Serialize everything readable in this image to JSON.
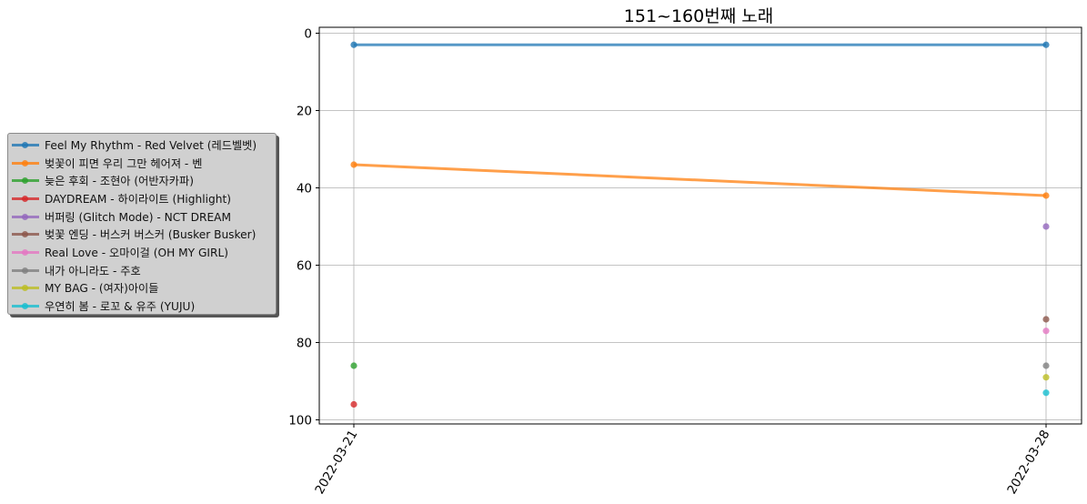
{
  "chart_data": {
    "type": "line",
    "title": "151~160번째 노래",
    "xlabel": "",
    "ylabel": "",
    "x": [
      "2022-03-21",
      "2022-03-28"
    ],
    "y_inverted": true,
    "ylim": [
      100,
      0
    ],
    "yticks": [
      "0",
      "20",
      "40",
      "60",
      "80",
      "100"
    ],
    "grid": true,
    "legend_position": "left outside",
    "series": [
      {
        "name": "Feel My Rhythm - Red Velvet (레드벨벳)",
        "color": "#1f77b4",
        "values": [
          3,
          3
        ]
      },
      {
        "name": "벚꽃이 피면 우리 그만 헤어져 - 벤",
        "color": "#ff7f0e",
        "values": [
          34,
          42
        ]
      },
      {
        "name": "늦은 후회 - 조현아 (어반자카파)",
        "color": "#2ca02c",
        "values": [
          86,
          null
        ]
      },
      {
        "name": "DAYDREAM - 하이라이트 (Highlight)",
        "color": "#d62728",
        "values": [
          96,
          null
        ]
      },
      {
        "name": "버퍼링 (Glitch Mode) - NCT DREAM",
        "color": "#9467bd",
        "values": [
          null,
          50
        ]
      },
      {
        "name": "벚꽃 엔딩 - 버스커 버스커 (Busker Busker)",
        "color": "#8c564b",
        "values": [
          null,
          74
        ]
      },
      {
        "name": "Real Love - 오마이걸 (OH MY GIRL)",
        "color": "#e377c2",
        "values": [
          null,
          77
        ]
      },
      {
        "name": "내가 아니라도 - 주호",
        "color": "#7f7f7f",
        "values": [
          null,
          86
        ]
      },
      {
        "name": "MY BAG - (여자)아이들",
        "color": "#bcbd22",
        "values": [
          null,
          89
        ]
      },
      {
        "name": "우연히 봄 - 로꼬 & 유주 (YUJU)",
        "color": "#17becf",
        "values": [
          null,
          93
        ]
      }
    ]
  }
}
